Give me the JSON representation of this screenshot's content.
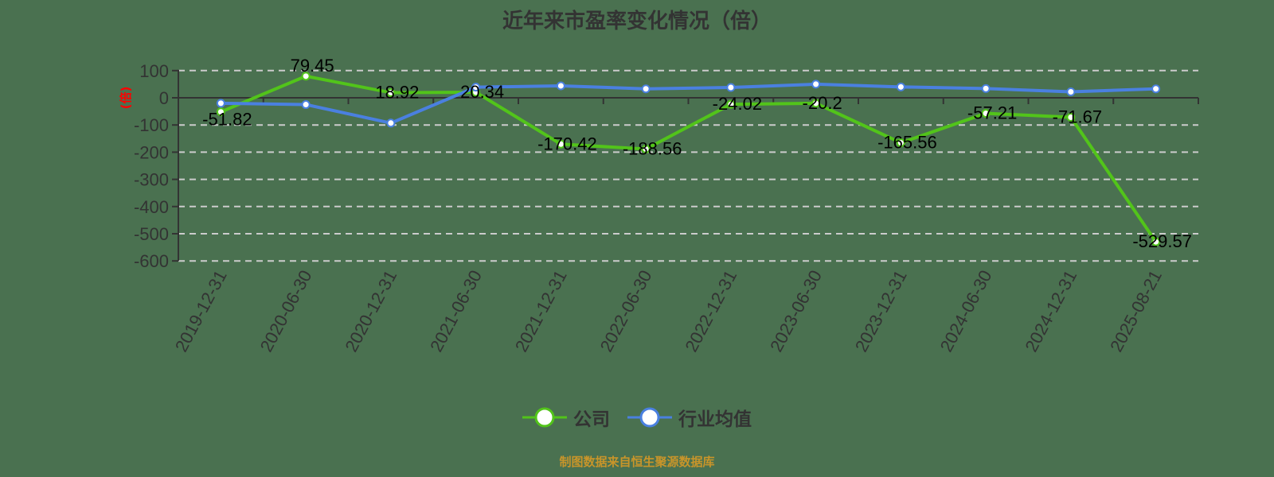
{
  "title": "近年来市盈率变化情况（倍）",
  "footer": "制图数据来自恒生聚源数据库",
  "legend": [
    {
      "name": "公司",
      "color": "#52c41a"
    },
    {
      "name": "行业均值",
      "color": "#4a80e0"
    }
  ],
  "colors": {
    "company": "#52c41a",
    "industry": "#4a80e0",
    "background": "#4a7150",
    "axis": "#333333",
    "grid": "#cccccc"
  },
  "chart_data": {
    "type": "line",
    "title": "近年来市盈率变化情况（倍）",
    "xlabel": "",
    "ylabel": "(倍)",
    "ylim": [
      -600,
      100
    ],
    "yticks": [
      100,
      0,
      -100,
      -200,
      -300,
      -400,
      -500,
      -600
    ],
    "grid": true,
    "legend_position": "bottom",
    "categories": [
      "2019-12-31",
      "2020-06-30",
      "2020-12-31",
      "2021-06-30",
      "2021-12-31",
      "2022-06-30",
      "2022-12-31",
      "2023-06-30",
      "2023-12-31",
      "2024-06-30",
      "2024-12-31",
      "2025-08-21"
    ],
    "series": [
      {
        "name": "公司",
        "values": [
          -51.82,
          79.45,
          18.92,
          20.34,
          -170.42,
          -188.56,
          -24.02,
          -20.2,
          -165.56,
          -57.21,
          -71.67,
          -529.57
        ],
        "labels": [
          "-51.82",
          "79.45",
          "18.92",
          "20.34",
          "-170.42",
          "-188.56",
          "-24.02",
          "-20.2",
          "-165.56",
          "-57.21",
          "-71.67",
          "-529.57"
        ]
      },
      {
        "name": "行业均值",
        "values": [
          -20,
          -25,
          -93,
          39,
          44,
          33,
          38,
          50,
          40,
          34,
          22,
          33
        ]
      }
    ]
  }
}
